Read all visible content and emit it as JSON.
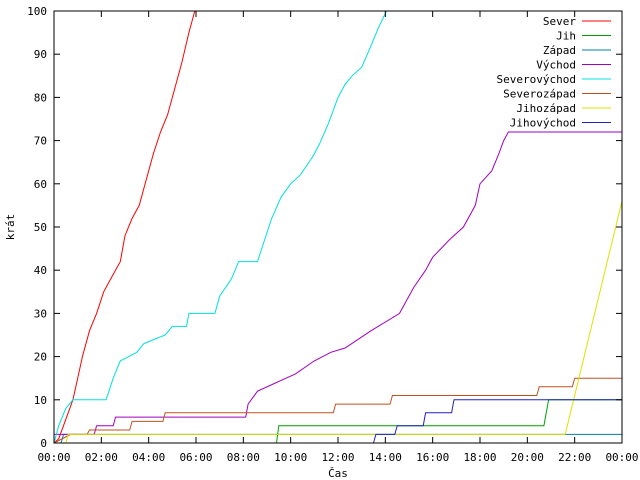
{
  "chart_data": {
    "type": "line",
    "xlabel": "Čas",
    "ylabel": "krát",
    "xlim": [
      0,
      24
    ],
    "ylim": [
      0,
      100
    ],
    "x_ticks": [
      {
        "value": 0,
        "label": "00:00"
      },
      {
        "value": 2,
        "label": "02:00"
      },
      {
        "value": 4,
        "label": "04:00"
      },
      {
        "value": 6,
        "label": "06:00"
      },
      {
        "value": 8,
        "label": "08:00"
      },
      {
        "value": 10,
        "label": "10:00"
      },
      {
        "value": 12,
        "label": "12:00"
      },
      {
        "value": 14,
        "label": "14:00"
      },
      {
        "value": 16,
        "label": "16:00"
      },
      {
        "value": 18,
        "label": "18:00"
      },
      {
        "value": 20,
        "label": "20:00"
      },
      {
        "value": 22,
        "label": "22:00"
      },
      {
        "value": 24,
        "label": "00:00"
      }
    ],
    "y_ticks": [
      {
        "value": 0,
        "label": "0"
      },
      {
        "value": 10,
        "label": "10"
      },
      {
        "value": 20,
        "label": "20"
      },
      {
        "value": 30,
        "label": "30"
      },
      {
        "value": 40,
        "label": "40"
      },
      {
        "value": 50,
        "label": "50"
      },
      {
        "value": 60,
        "label": "60"
      },
      {
        "value": 70,
        "label": "70"
      },
      {
        "value": 80,
        "label": "80"
      },
      {
        "value": 90,
        "label": "90"
      },
      {
        "value": 100,
        "label": "100"
      }
    ],
    "grid": false,
    "legend_position": "top-right",
    "series": [
      {
        "name": "Sever",
        "color": "#ff0000",
        "points": [
          [
            0,
            0
          ],
          [
            0.2,
            1
          ],
          [
            0.4,
            4
          ],
          [
            0.6,
            7
          ],
          [
            0.8,
            10
          ],
          [
            1.0,
            15
          ],
          [
            1.2,
            20
          ],
          [
            1.5,
            26
          ],
          [
            1.8,
            30
          ],
          [
            2.1,
            35
          ],
          [
            2.4,
            38
          ],
          [
            2.8,
            42
          ],
          [
            3.0,
            48
          ],
          [
            3.3,
            52
          ],
          [
            3.6,
            55
          ],
          [
            3.9,
            61
          ],
          [
            4.2,
            67
          ],
          [
            4.5,
            72
          ],
          [
            4.8,
            76
          ],
          [
            5.1,
            82
          ],
          [
            5.4,
            88
          ],
          [
            5.7,
            95
          ],
          [
            5.95,
            100
          ]
        ]
      },
      {
        "name": "Jih",
        "color": "#00a000",
        "points": [
          [
            0,
            0
          ],
          [
            9.4,
            0
          ],
          [
            9.5,
            4
          ],
          [
            20.7,
            4
          ],
          [
            20.9,
            10
          ],
          [
            24,
            10
          ]
        ]
      },
      {
        "name": "Západ",
        "color": "#0080a0",
        "points": [
          [
            0,
            0
          ],
          [
            0.3,
            0
          ],
          [
            0.4,
            2
          ],
          [
            24,
            2
          ]
        ]
      },
      {
        "name": "Východ",
        "color": "#a000c0",
        "points": [
          [
            0,
            2
          ],
          [
            1.7,
            2
          ],
          [
            1.8,
            4
          ],
          [
            2.5,
            4
          ],
          [
            2.6,
            6
          ],
          [
            8.1,
            6
          ],
          [
            8.2,
            9
          ],
          [
            8.6,
            12
          ],
          [
            9.4,
            14
          ],
          [
            10.2,
            16
          ],
          [
            11.0,
            19
          ],
          [
            11.7,
            21
          ],
          [
            12.3,
            22
          ],
          [
            13.4,
            26
          ],
          [
            14.6,
            30
          ],
          [
            15.2,
            36
          ],
          [
            15.7,
            40
          ],
          [
            16.0,
            43
          ],
          [
            16.7,
            47
          ],
          [
            17.3,
            50
          ],
          [
            17.8,
            55
          ],
          [
            18.0,
            60
          ],
          [
            18.5,
            63
          ],
          [
            18.8,
            67
          ],
          [
            19.0,
            70
          ],
          [
            19.2,
            72
          ],
          [
            24,
            72
          ]
        ]
      },
      {
        "name": "Severovýchod",
        "color": "#00e0e0",
        "points": [
          [
            0,
            0
          ],
          [
            0.2,
            4
          ],
          [
            0.5,
            8
          ],
          [
            0.8,
            10
          ],
          [
            2.2,
            10
          ],
          [
            2.5,
            15
          ],
          [
            2.8,
            19
          ],
          [
            3.5,
            21
          ],
          [
            3.8,
            23
          ],
          [
            4.7,
            25
          ],
          [
            5.0,
            27
          ],
          [
            5.6,
            27
          ],
          [
            5.7,
            30
          ],
          [
            6.8,
            30
          ],
          [
            7.0,
            34
          ],
          [
            7.5,
            38
          ],
          [
            7.8,
            42
          ],
          [
            8.6,
            42
          ],
          [
            8.9,
            47
          ],
          [
            9.2,
            52
          ],
          [
            9.6,
            57
          ],
          [
            10.0,
            60
          ],
          [
            10.4,
            62
          ],
          [
            10.9,
            66
          ],
          [
            11.2,
            69
          ],
          [
            11.6,
            74
          ],
          [
            12.0,
            80
          ],
          [
            12.3,
            83
          ],
          [
            12.6,
            85
          ],
          [
            13.0,
            87
          ],
          [
            13.4,
            92
          ],
          [
            13.7,
            96
          ],
          [
            14.05,
            100
          ]
        ]
      },
      {
        "name": "Severozápad",
        "color": "#c05020",
        "points": [
          [
            0,
            0
          ],
          [
            0.7,
            2
          ],
          [
            1.4,
            2
          ],
          [
            1.5,
            3
          ],
          [
            3.2,
            3
          ],
          [
            3.3,
            5
          ],
          [
            4.6,
            5
          ],
          [
            4.7,
            7
          ],
          [
            11.8,
            7
          ],
          [
            11.9,
            9
          ],
          [
            14.2,
            9
          ],
          [
            14.3,
            11
          ],
          [
            20.4,
            11
          ],
          [
            20.5,
            13
          ],
          [
            21.9,
            13
          ],
          [
            22.0,
            15
          ],
          [
            24,
            15
          ]
        ]
      },
      {
        "name": "Jihozápad",
        "color": "#e0e000",
        "points": [
          [
            0,
            0
          ],
          [
            0.5,
            0
          ],
          [
            0.6,
            2
          ],
          [
            21.6,
            2
          ],
          [
            24,
            56
          ]
        ]
      },
      {
        "name": "Jihovýchod",
        "color": "#2020c0",
        "points": [
          [
            0,
            0
          ],
          [
            13.5,
            0
          ],
          [
            13.6,
            2
          ],
          [
            14.4,
            2
          ],
          [
            14.5,
            4
          ],
          [
            15.6,
            4
          ],
          [
            15.7,
            7
          ],
          [
            16.8,
            7
          ],
          [
            16.9,
            10
          ],
          [
            24,
            10
          ]
        ]
      }
    ]
  }
}
